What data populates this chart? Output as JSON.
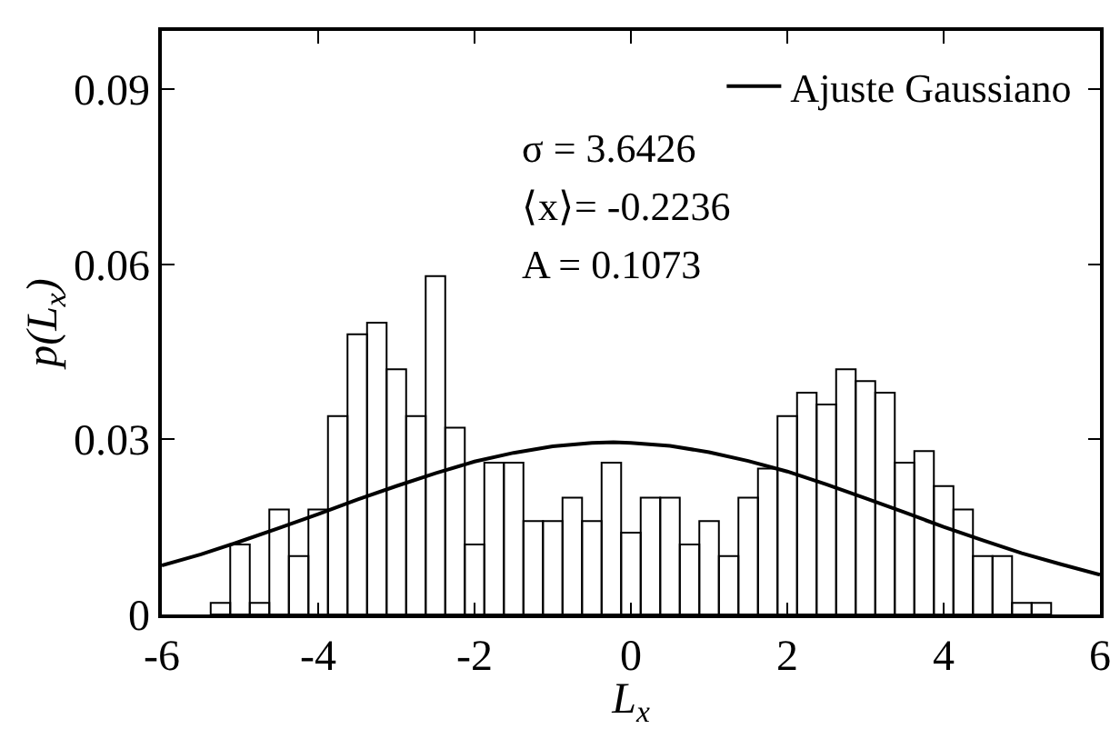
{
  "chart_data": {
    "type": "histogram",
    "xlabel": "L$_{x}$",
    "ylabel": "p(L$_{x}$)",
    "annotations": [
      "σ = 3.6426",
      "⟨x⟩= -0.2236",
      "A = 0.1073"
    ],
    "series": [
      {
        "color": "#000000",
        "bins": [
          -5.375,
          -5.125,
          -4.875,
          -4.625,
          -4.375,
          -4.125,
          -3.875,
          -3.625,
          -3.375,
          -3.125,
          -2.875,
          -2.625,
          -2.375,
          -2.125,
          -1.875,
          -1.625,
          -1.375,
          -1.125,
          -0.875,
          -0.625,
          -0.375,
          -0.125,
          0.125,
          0.375,
          0.625,
          0.875,
          1.125,
          1.375,
          1.625,
          1.875,
          2.125,
          2.375,
          2.625,
          2.875,
          3.125,
          3.375,
          3.625,
          3.875,
          4.125,
          4.375,
          4.625,
          4.875,
          5.125,
          5.375
        ],
        "values": [
          0.002,
          0.012,
          0.002,
          0.018,
          0.01,
          0.018,
          0.034,
          0.048,
          0.05,
          0.042,
          0.034,
          0.058,
          0.032,
          0.012,
          0.026,
          0.026,
          0.016,
          0.016,
          0.02,
          0.016,
          0.026,
          0.014,
          0.02,
          0.02,
          0.012,
          0.016,
          0.01,
          0.02,
          0.025,
          0.034,
          0.038,
          0.036,
          0.042,
          0.04,
          0.038,
          0.026,
          0.028,
          0.022,
          0.018,
          0.01,
          0.01,
          0.002,
          0.002
        ]
      },
      {
        "type": "line",
        "name": "Ajuste Gaussiano",
        "color": "#000000",
        "x": [
          -6,
          -5.5,
          -5,
          -4.5,
          -4,
          -3.5,
          -3,
          -2.5,
          -2,
          -1.5,
          -1,
          -0.5,
          -0.2236,
          0,
          0.5,
          1,
          1.5,
          2,
          2.5,
          3,
          3.5,
          4,
          4.5,
          5,
          5.5,
          6
        ],
        "values": [
          0.0084,
          0.0103,
          0.0125,
          0.0148,
          0.0172,
          0.0197,
          0.022,
          0.0242,
          0.0262,
          0.0277,
          0.0288,
          0.0294,
          0.0295,
          0.0294,
          0.0289,
          0.0278,
          0.0263,
          0.0245,
          0.0223,
          0.0199,
          0.0175,
          0.015,
          0.0127,
          0.0105,
          0.0086,
          0.0068
        ]
      }
    ],
    "xlim": [
      -6,
      6
    ],
    "xticks": [
      -6,
      -4,
      -2,
      0,
      2,
      4,
      6
    ],
    "ylim": [
      0,
      0.1
    ],
    "yticks": [
      0,
      0.03,
      0.06,
      0.09
    ],
    "legend": "top right",
    "marker": "none",
    "line_style": "solid"
  }
}
